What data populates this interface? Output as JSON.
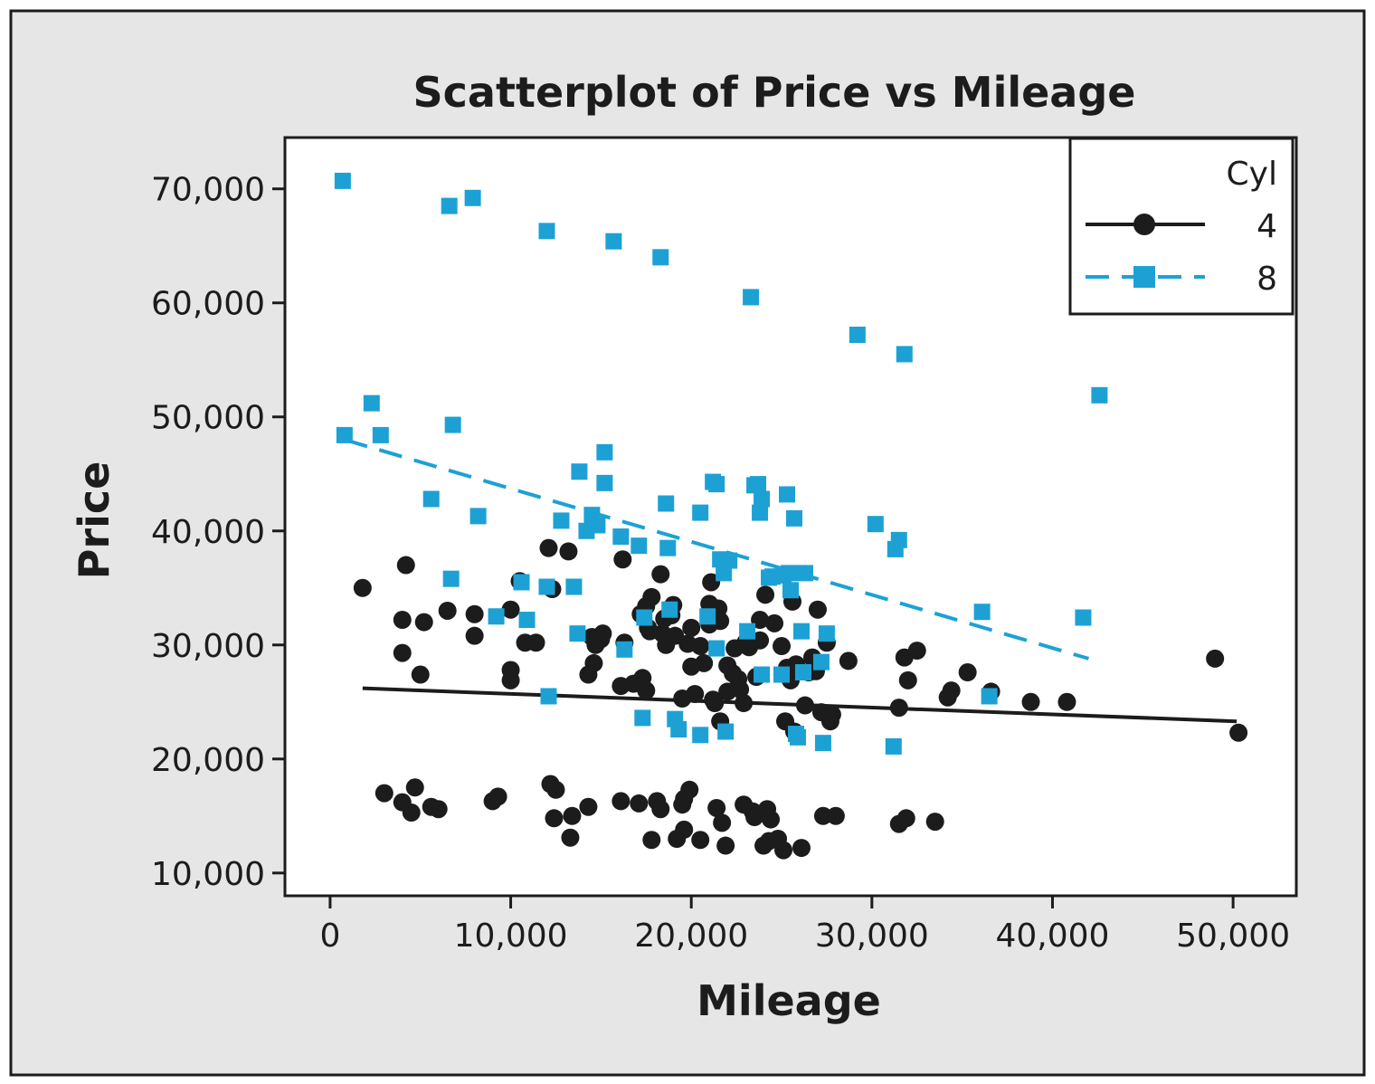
{
  "chart_data": {
    "type": "scatter",
    "title": "Scatterplot of Price vs Mileage",
    "xlabel": "Mileage",
    "ylabel": "Price",
    "xlim": [
      -2500,
      53500
    ],
    "ylim": [
      8000,
      74500
    ],
    "x_ticks": [
      0,
      10000,
      20000,
      30000,
      40000,
      50000
    ],
    "x_tick_labels": [
      "0",
      "10,000",
      "20,000",
      "30,000",
      "40,000",
      "50,000"
    ],
    "y_ticks": [
      10000,
      20000,
      30000,
      40000,
      50000,
      60000,
      70000
    ],
    "y_tick_labels": [
      "10,000",
      "20,000",
      "30,000",
      "40,000",
      "50,000",
      "60,000",
      "70,000"
    ],
    "grid": false,
    "legend": {
      "title": "Cyl",
      "placement": "top-right"
    },
    "series": [
      {
        "name": "4",
        "marker": "circle",
        "line": "solid",
        "color": "#1c1c1c",
        "trend": {
          "x": [
            1800,
            50200
          ],
          "y": [
            26200,
            23300
          ]
        },
        "points": [
          [
            1800,
            35000
          ],
          [
            3000,
            17000
          ],
          [
            4000,
            16200
          ],
          [
            4200,
            37000
          ],
          [
            4000,
            32200
          ],
          [
            4000,
            29300
          ],
          [
            4500,
            15300
          ],
          [
            4700,
            17500
          ],
          [
            5000,
            27400
          ],
          [
            5200,
            32000
          ],
          [
            5600,
            15800
          ],
          [
            6000,
            15600
          ],
          [
            6500,
            33000
          ],
          [
            8000,
            32700
          ],
          [
            8000,
            30800
          ],
          [
            9000,
            16300
          ],
          [
            9300,
            16700
          ],
          [
            10000,
            33100
          ],
          [
            10000,
            27800
          ],
          [
            10000,
            26900
          ],
          [
            10500,
            35600
          ],
          [
            10800,
            30200
          ],
          [
            11400,
            30200
          ],
          [
            12100,
            38500
          ],
          [
            12200,
            17800
          ],
          [
            12300,
            34900
          ],
          [
            12400,
            14800
          ],
          [
            12500,
            17300
          ],
          [
            13200,
            38200
          ],
          [
            13300,
            13100
          ],
          [
            13400,
            15000
          ],
          [
            14300,
            15800
          ],
          [
            14300,
            27400
          ],
          [
            14500,
            30700
          ],
          [
            14600,
            28400
          ],
          [
            14700,
            30000
          ],
          [
            15000,
            30500
          ],
          [
            15100,
            31000
          ],
          [
            16100,
            16300
          ],
          [
            16100,
            26400
          ],
          [
            16200,
            37500
          ],
          [
            16300,
            30200
          ],
          [
            16800,
            26600
          ],
          [
            17100,
            16100
          ],
          [
            17200,
            32700
          ],
          [
            17300,
            27100
          ],
          [
            17500,
            26000
          ],
          [
            17500,
            33400
          ],
          [
            17600,
            31500
          ],
          [
            17700,
            31200
          ],
          [
            17800,
            34200
          ],
          [
            17800,
            12900
          ],
          [
            18100,
            16300
          ],
          [
            18300,
            15600
          ],
          [
            18300,
            36200
          ],
          [
            18400,
            31000
          ],
          [
            18500,
            32300
          ],
          [
            18600,
            30000
          ],
          [
            18900,
            32600
          ],
          [
            19000,
            33500
          ],
          [
            19100,
            30800
          ],
          [
            19200,
            13000
          ],
          [
            19500,
            16000
          ],
          [
            19500,
            25300
          ],
          [
            19600,
            13800
          ],
          [
            19600,
            16500
          ],
          [
            19900,
            17300
          ],
          [
            19800,
            30100
          ],
          [
            20000,
            31500
          ],
          [
            20000,
            28100
          ],
          [
            20200,
            25700
          ],
          [
            20500,
            29900
          ],
          [
            20500,
            12900
          ],
          [
            20700,
            28400
          ],
          [
            21000,
            33600
          ],
          [
            21000,
            31800
          ],
          [
            21100,
            35500
          ],
          [
            21200,
            25200
          ],
          [
            21300,
            24900
          ],
          [
            21400,
            15700
          ],
          [
            21500,
            33200
          ],
          [
            21600,
            32100
          ],
          [
            21600,
            23300
          ],
          [
            21700,
            14400
          ],
          [
            21900,
            12400
          ],
          [
            22000,
            28200
          ],
          [
            22000,
            25900
          ],
          [
            22300,
            27500
          ],
          [
            22400,
            29700
          ],
          [
            22600,
            27000
          ],
          [
            22700,
            26100
          ],
          [
            22900,
            24900
          ],
          [
            22900,
            16000
          ],
          [
            23000,
            30200
          ],
          [
            23200,
            29800
          ],
          [
            23400,
            15400
          ],
          [
            23500,
            14900
          ],
          [
            23600,
            27200
          ],
          [
            23800,
            30400
          ],
          [
            23800,
            32200
          ],
          [
            24000,
            12400
          ],
          [
            24100,
            34400
          ],
          [
            24200,
            15600
          ],
          [
            24300,
            12800
          ],
          [
            24400,
            14700
          ],
          [
            24600,
            31900
          ],
          [
            24800,
            13000
          ],
          [
            25000,
            29900
          ],
          [
            25100,
            12000
          ],
          [
            25200,
            23300
          ],
          [
            25300,
            28000
          ],
          [
            25500,
            26900
          ],
          [
            25600,
            33800
          ],
          [
            25700,
            22400
          ],
          [
            25800,
            28300
          ],
          [
            26100,
            12200
          ],
          [
            26300,
            24700
          ],
          [
            26500,
            27600
          ],
          [
            26700,
            28900
          ],
          [
            26900,
            27700
          ],
          [
            27000,
            33100
          ],
          [
            27200,
            24100
          ],
          [
            27300,
            15000
          ],
          [
            27500,
            30200
          ],
          [
            27700,
            23300
          ],
          [
            27800,
            23900
          ],
          [
            28000,
            15000
          ],
          [
            28700,
            28600
          ],
          [
            31500,
            14300
          ],
          [
            31500,
            24500
          ],
          [
            31800,
            28900
          ],
          [
            31900,
            14800
          ],
          [
            32000,
            26900
          ],
          [
            32500,
            29500
          ],
          [
            33500,
            14500
          ],
          [
            34200,
            25400
          ],
          [
            34400,
            26000
          ],
          [
            35300,
            27600
          ],
          [
            36600,
            25900
          ],
          [
            38800,
            25000
          ],
          [
            40800,
            25000
          ],
          [
            49000,
            28800
          ],
          [
            50300,
            22300
          ]
        ]
      },
      {
        "name": "8",
        "marker": "square",
        "line": "dashed",
        "color": "#1da1d5",
        "trend": {
          "x": [
            800,
            42000
          ],
          "y": [
            48000,
            28800
          ]
        },
        "points": [
          [
            700,
            70700
          ],
          [
            800,
            48400
          ],
          [
            2300,
            51200
          ],
          [
            2800,
            48400
          ],
          [
            5600,
            42800
          ],
          [
            6600,
            68500
          ],
          [
            6700,
            35800
          ],
          [
            6800,
            49300
          ],
          [
            7900,
            69200
          ],
          [
            8200,
            41300
          ],
          [
            9200,
            32500
          ],
          [
            10600,
            35500
          ],
          [
            10900,
            32200
          ],
          [
            12000,
            66300
          ],
          [
            12000,
            35100
          ],
          [
            12100,
            25500
          ],
          [
            12800,
            40900
          ],
          [
            13500,
            35100
          ],
          [
            13700,
            31000
          ],
          [
            13800,
            45200
          ],
          [
            14200,
            40000
          ],
          [
            14500,
            41400
          ],
          [
            14800,
            40500
          ],
          [
            15200,
            46900
          ],
          [
            15200,
            44200
          ],
          [
            15700,
            65400
          ],
          [
            16100,
            39500
          ],
          [
            16300,
            29600
          ],
          [
            17100,
            38700
          ],
          [
            17300,
            23600
          ],
          [
            17400,
            32400
          ],
          [
            18300,
            64000
          ],
          [
            18600,
            42400
          ],
          [
            18700,
            38500
          ],
          [
            18800,
            33100
          ],
          [
            19100,
            23500
          ],
          [
            19300,
            22600
          ],
          [
            20500,
            22100
          ],
          [
            20500,
            41600
          ],
          [
            20900,
            32500
          ],
          [
            21200,
            44300
          ],
          [
            21400,
            29700
          ],
          [
            21400,
            44100
          ],
          [
            21600,
            37500
          ],
          [
            21800,
            36300
          ],
          [
            21900,
            22400
          ],
          [
            22100,
            37400
          ],
          [
            23100,
            31200
          ],
          [
            23300,
            60500
          ],
          [
            23500,
            44000
          ],
          [
            23700,
            44100
          ],
          [
            23800,
            41600
          ],
          [
            23900,
            27400
          ],
          [
            23900,
            42800
          ],
          [
            24300,
            35900
          ],
          [
            24500,
            36000
          ],
          [
            25000,
            27400
          ],
          [
            25100,
            36100
          ],
          [
            25300,
            43200
          ],
          [
            25400,
            36300
          ],
          [
            25500,
            34800
          ],
          [
            25700,
            41100
          ],
          [
            25800,
            22200
          ],
          [
            25900,
            21900
          ],
          [
            26100,
            31200
          ],
          [
            26200,
            27600
          ],
          [
            26300,
            36300
          ],
          [
            27200,
            28500
          ],
          [
            27300,
            21400
          ],
          [
            27500,
            31000
          ],
          [
            29200,
            57200
          ],
          [
            30200,
            40600
          ],
          [
            31200,
            21100
          ],
          [
            31300,
            38400
          ],
          [
            31500,
            39200
          ],
          [
            31800,
            55500
          ],
          [
            36100,
            32900
          ],
          [
            36500,
            25500
          ],
          [
            41700,
            32400
          ],
          [
            42600,
            51900
          ]
        ]
      }
    ]
  }
}
